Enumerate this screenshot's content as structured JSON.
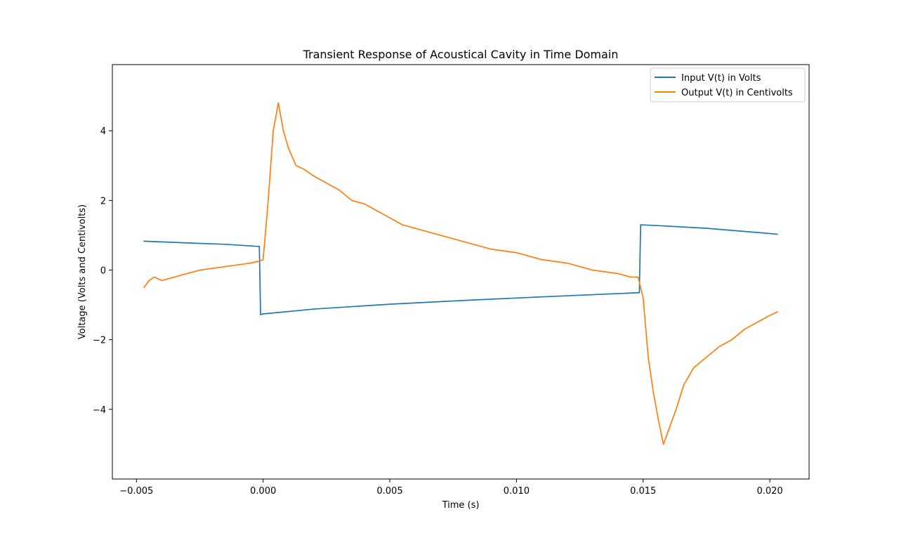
{
  "chart_data": {
    "type": "line",
    "title": "Transient Response of Acoustical Cavity in Time Domain",
    "xlabel": "Time (s)",
    "ylabel": "Voltage (Volts and Centivolts)",
    "xlim": [
      -0.00595,
      0.02155
    ],
    "ylim": [
      -6.0,
      5.9
    ],
    "xticks": [
      -0.005,
      0.0,
      0.005,
      0.01,
      0.015,
      0.02
    ],
    "xtick_labels": [
      "−0.005",
      "0.000",
      "0.005",
      "0.010",
      "0.015",
      "0.020"
    ],
    "yticks": [
      -4,
      -2,
      0,
      2,
      4
    ],
    "ytick_labels": [
      "−4",
      "−2",
      "0",
      "2",
      "4"
    ],
    "grid": false,
    "legend_position": "top-right",
    "series": [
      {
        "name": "Input V(t) in Volts",
        "color": "#1f77b4",
        "x": [
          -0.0047,
          -0.003,
          -0.0015,
          -0.0002,
          -0.00015,
          -0.0001,
          0.0,
          0.002,
          0.005,
          0.008,
          0.011,
          0.0148,
          0.01485,
          0.0149,
          0.0155,
          0.0175,
          0.0195,
          0.0203
        ],
        "y": [
          0.83,
          0.78,
          0.74,
          0.68,
          0.68,
          -1.28,
          -1.26,
          -1.12,
          -0.98,
          -0.87,
          -0.77,
          -0.65,
          -0.65,
          1.3,
          1.28,
          1.2,
          1.08,
          1.03
        ]
      },
      {
        "name": "Output V(t) in Centivolts",
        "color": "#ff7f0e",
        "x": [
          -0.0047,
          -0.0045,
          -0.0043,
          -0.004,
          -0.0035,
          -0.003,
          -0.0025,
          -0.002,
          -0.0015,
          -0.001,
          -0.0005,
          -0.0002,
          0.0,
          0.0002,
          0.0004,
          0.0006,
          0.0008,
          0.001,
          0.0013,
          0.0016,
          0.002,
          0.0025,
          0.003,
          0.0035,
          0.004,
          0.0045,
          0.005,
          0.0055,
          0.006,
          0.007,
          0.008,
          0.009,
          0.01,
          0.011,
          0.012,
          0.013,
          0.014,
          0.0145,
          0.0148,
          0.015,
          0.0152,
          0.0154,
          0.0156,
          0.0158,
          0.016,
          0.0163,
          0.0166,
          0.017,
          0.0175,
          0.018,
          0.0185,
          0.019,
          0.0195,
          0.02,
          0.0203
        ],
        "y": [
          -0.5,
          -0.3,
          -0.2,
          -0.3,
          -0.2,
          -0.1,
          0.0,
          0.05,
          0.1,
          0.15,
          0.2,
          0.25,
          0.3,
          2.0,
          4.0,
          4.8,
          4.0,
          3.5,
          3.0,
          2.9,
          2.7,
          2.5,
          2.3,
          2.0,
          1.9,
          1.7,
          1.5,
          1.3,
          1.2,
          1.0,
          0.8,
          0.6,
          0.5,
          0.3,
          0.2,
          0.0,
          -0.1,
          -0.2,
          -0.2,
          -0.8,
          -2.5,
          -3.5,
          -4.3,
          -5.0,
          -4.6,
          -4.0,
          -3.3,
          -2.8,
          -2.5,
          -2.2,
          -2.0,
          -1.7,
          -1.5,
          -1.3,
          -1.2
        ]
      }
    ]
  }
}
